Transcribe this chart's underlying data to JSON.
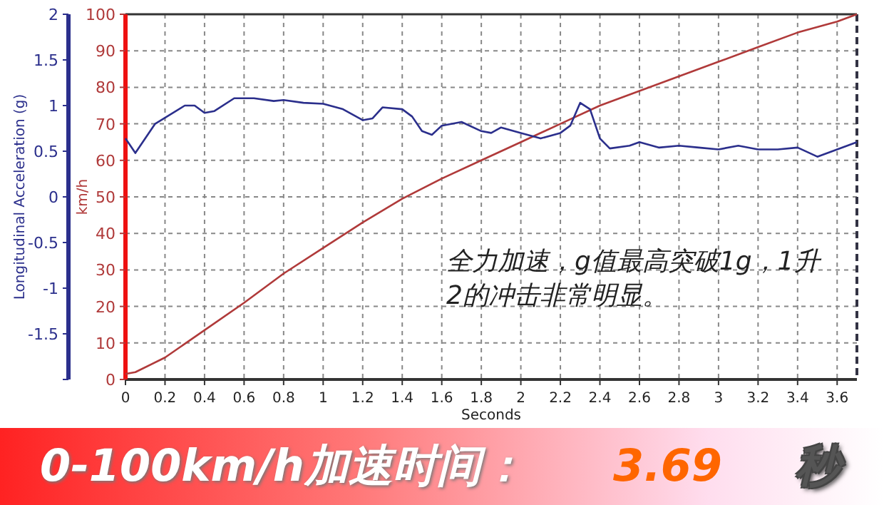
{
  "chart_data": {
    "type": "line",
    "title": "0-100km/h加速时间：",
    "xlabel": "Seconds",
    "ylabel": "km/h",
    "y2label": "Longitudinal Acceleration (g)",
    "annotations": [
      "全力加速，g值最高突破1g，1升2的冲击非常明显。",
      "3.69",
      "秒"
    ],
    "xlim": [
      0,
      3.7
    ],
    "xticks": [
      0,
      0.2,
      0.4,
      0.6,
      0.8,
      1,
      1.2,
      1.4,
      1.6,
      1.8,
      2,
      2.2,
      2.4,
      2.6,
      2.8,
      3,
      3.2,
      3.4,
      3.6
    ],
    "ylim": [
      0,
      100
    ],
    "yticks": [
      0,
      10,
      20,
      30,
      40,
      50,
      60,
      70,
      80,
      90,
      100
    ],
    "y2lim": [
      -2,
      2
    ],
    "y2ticks": [
      {
        "value": -2,
        "label": null
      },
      -1.5,
      -1,
      -0.5,
      0,
      0.5,
      1,
      1.5,
      2
    ],
    "grid": true,
    "marker": "none",
    "line_style": "solid",
    "series": [
      {
        "color": "#b03a3a",
        "x": [
          0,
          0.05,
          0.2,
          0.4,
          0.6,
          0.8,
          1.0,
          1.2,
          1.4,
          1.6,
          1.8,
          2.0,
          2.2,
          2.4,
          2.6,
          2.8,
          3.0,
          3.2,
          3.4,
          3.6,
          3.7
        ],
        "values": [
          1.5,
          2,
          6,
          13.5,
          21,
          29,
          36,
          43,
          49.5,
          55,
          60,
          65,
          70,
          75,
          79,
          83,
          87,
          91,
          95,
          98,
          100
        ]
      },
      {
        "color": "#2b2f8c",
        "axis": "y2",
        "x": [
          0,
          0.05,
          0.15,
          0.3,
          0.35,
          0.4,
          0.45,
          0.55,
          0.65,
          0.75,
          0.8,
          0.9,
          1.0,
          1.1,
          1.2,
          1.25,
          1.3,
          1.4,
          1.45,
          1.5,
          1.55,
          1.6,
          1.7,
          1.8,
          1.85,
          1.9,
          2.0,
          2.1,
          2.2,
          2.25,
          2.3,
          2.35,
          2.4,
          2.45,
          2.55,
          2.6,
          2.7,
          2.8,
          2.9,
          3.0,
          3.1,
          3.2,
          3.3,
          3.4,
          3.5,
          3.6,
          3.7
        ],
        "values": [
          0.64,
          0.48,
          0.8,
          1.0,
          1.0,
          0.92,
          0.94,
          1.08,
          1.08,
          1.05,
          1.06,
          1.03,
          1.02,
          0.96,
          0.84,
          0.86,
          0.98,
          0.96,
          0.88,
          0.72,
          0.68,
          0.78,
          0.82,
          0.72,
          0.7,
          0.76,
          0.7,
          0.64,
          0.7,
          0.78,
          1.03,
          0.96,
          0.64,
          0.53,
          0.56,
          0.6,
          0.54,
          0.56,
          0.54,
          0.52,
          0.56,
          0.52,
          0.52,
          0.54,
          0.44,
          0.52,
          0.6
        ]
      }
    ]
  }
}
